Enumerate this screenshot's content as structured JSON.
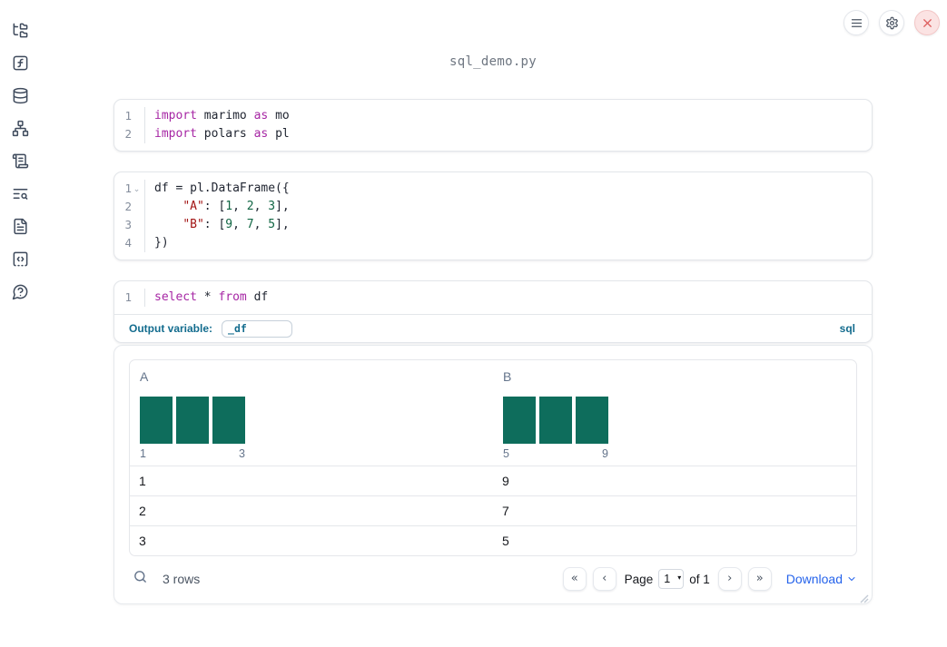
{
  "window": {
    "title": "sql_demo.py"
  },
  "sidebar": {
    "icons": [
      "folder-tree-icon",
      "function-square-icon",
      "database-icon",
      "dependency-graph-icon",
      "scroll-icon",
      "list-search-icon",
      "file-text-icon",
      "code-snippet-icon",
      "help-bubble-icon"
    ]
  },
  "topbar": {
    "buttons": [
      "menu-icon",
      "settings-gear-icon",
      "close-x-icon"
    ]
  },
  "colors": {
    "keyword": "#a626a4",
    "string": "#a31515",
    "number": "#116644",
    "accent_teal": "#136c8e",
    "hist_bar": "#0e6d5c",
    "link_blue": "#2563eb",
    "close_red": "#dd5c5c"
  },
  "cells": [
    {
      "name": "imports-cell",
      "lines": [
        {
          "num": "1",
          "fold": "",
          "tokens": [
            [
              "kw",
              "import"
            ],
            [
              "pl",
              " marimo "
            ],
            [
              "kw",
              "as"
            ],
            [
              "pl",
              " mo"
            ]
          ]
        },
        {
          "num": "2",
          "fold": "",
          "tokens": [
            [
              "kw",
              "import"
            ],
            [
              "pl",
              " polars "
            ],
            [
              "kw",
              "as"
            ],
            [
              "pl",
              " pl"
            ]
          ]
        }
      ]
    },
    {
      "name": "dataframe-cell",
      "lines": [
        {
          "num": "1",
          "fold": "⌄",
          "tokens": [
            [
              "pl",
              "df = pl.DataFrame({"
            ]
          ]
        },
        {
          "num": "2",
          "fold": "",
          "tokens": [
            [
              "pl",
              "    "
            ],
            [
              "str",
              "\"A\""
            ],
            [
              "pl",
              ": ["
            ],
            [
              "num",
              "1"
            ],
            [
              "pl",
              ", "
            ],
            [
              "num",
              "2"
            ],
            [
              "pl",
              ", "
            ],
            [
              "num",
              "3"
            ],
            [
              "pl",
              "],"
            ]
          ]
        },
        {
          "num": "3",
          "fold": "",
          "tokens": [
            [
              "pl",
              "    "
            ],
            [
              "str",
              "\"B\""
            ],
            [
              "pl",
              ": ["
            ],
            [
              "num",
              "9"
            ],
            [
              "pl",
              ", "
            ],
            [
              "num",
              "7"
            ],
            [
              "pl",
              ", "
            ],
            [
              "num",
              "5"
            ],
            [
              "pl",
              "],"
            ]
          ]
        },
        {
          "num": "4",
          "fold": "",
          "tokens": [
            [
              "pl",
              "})"
            ]
          ]
        }
      ]
    },
    {
      "name": "sql-cell",
      "lines": [
        {
          "num": "1",
          "fold": "",
          "tokens": [
            [
              "kw",
              "select"
            ],
            [
              "pl",
              " * "
            ],
            [
              "kw",
              "from"
            ],
            [
              "pl",
              " df"
            ]
          ]
        }
      ]
    }
  ],
  "sql_footer": {
    "output_variable_label": "Output variable:",
    "output_variable_value": "_df",
    "language_badge": "sql"
  },
  "table": {
    "columns": [
      {
        "name": "A",
        "histogram": {
          "bar_count": 3,
          "bar_heights": [
            1,
            1,
            1
          ],
          "min_label": "1",
          "max_label": "3"
        }
      },
      {
        "name": "B",
        "histogram": {
          "bar_count": 3,
          "bar_heights": [
            1,
            1,
            1
          ],
          "min_label": "5",
          "max_label": "9"
        }
      }
    ],
    "rows": [
      [
        "1",
        "9"
      ],
      [
        "2",
        "7"
      ],
      [
        "3",
        "5"
      ]
    ]
  },
  "table_footer": {
    "row_count": "3 rows",
    "pagination": {
      "first_icon": "«",
      "prev_icon": "‹",
      "next_icon": "›",
      "last_icon": "»",
      "page_label": "Page",
      "page_value": "1",
      "of_label": "of 1"
    },
    "download_label": "Download"
  }
}
